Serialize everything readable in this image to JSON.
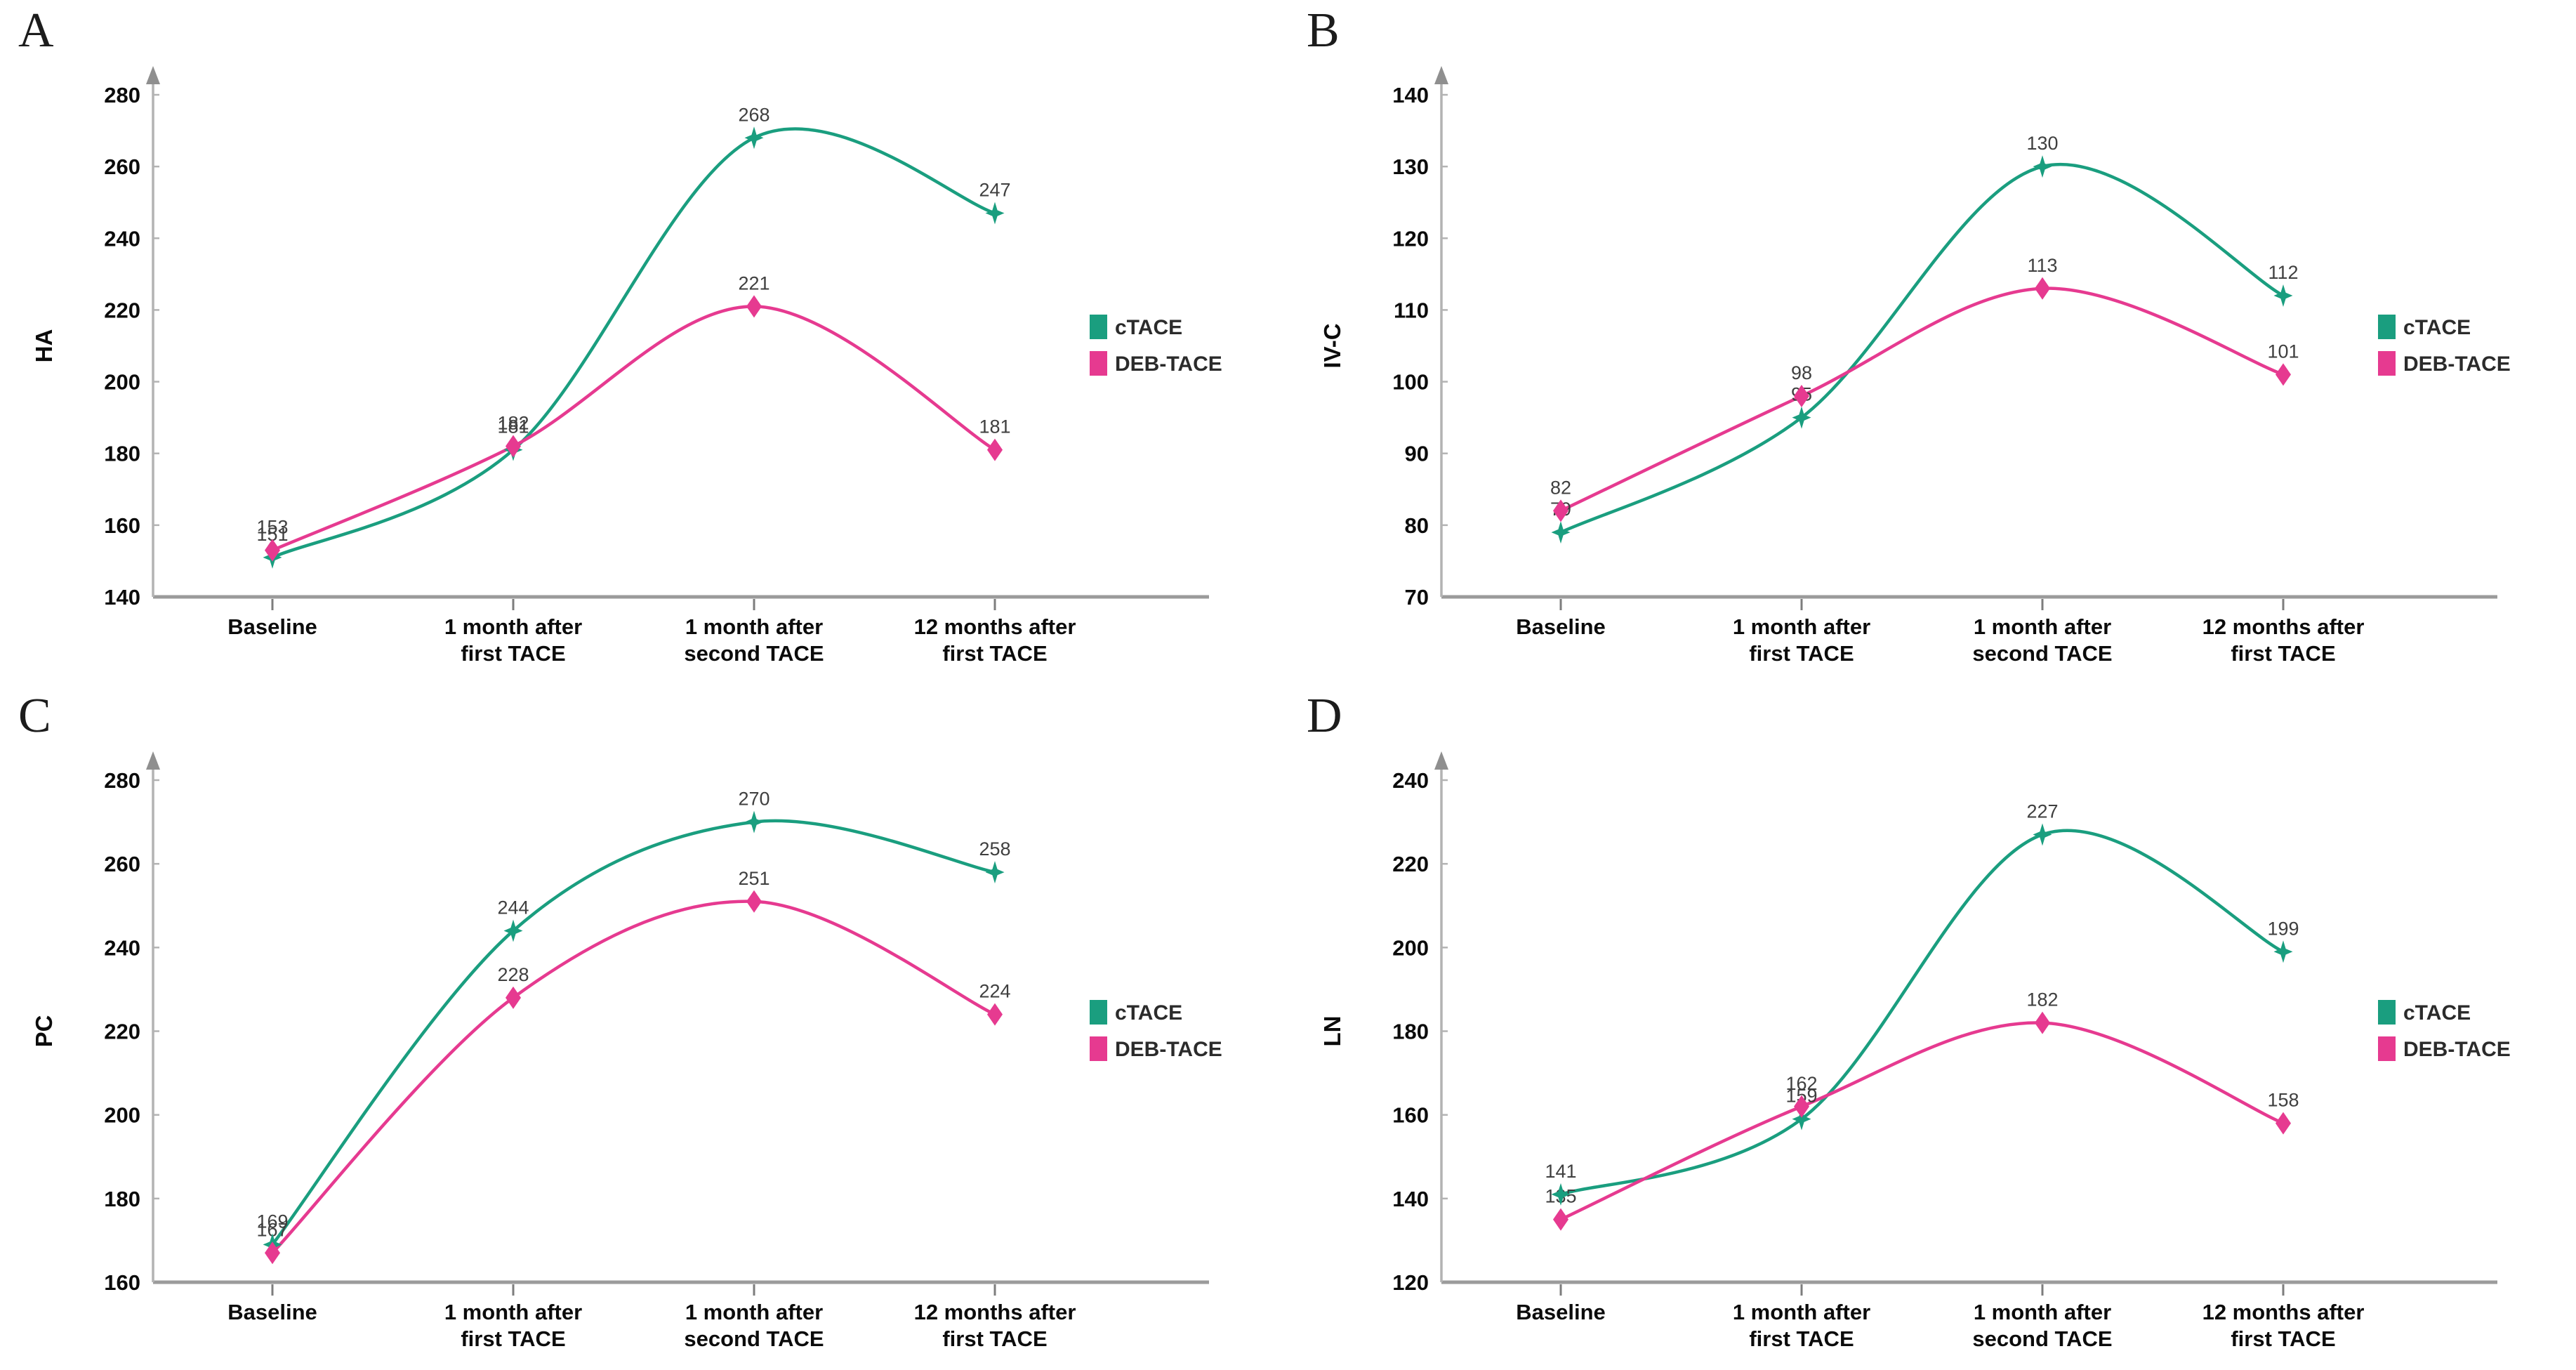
{
  "figure": {
    "background": "#ffffff",
    "panel_letters": [
      "A",
      "B",
      "C",
      "D"
    ]
  },
  "colors": {
    "ctace_green": "#1a9e7f",
    "deb_pink": "#e63a90",
    "x_axis_gray": "#9b9b9b",
    "y_axis_gray": "#b3b3b3",
    "arrow_gray": "#8f8f8f",
    "value_label_gray": "#3f3f3f",
    "tick_text_black": "#0b0b0b"
  },
  "chart_data": [
    {
      "panel_label": "A",
      "type": "line",
      "title": "",
      "xlabel": "",
      "ylabel": "HA",
      "ylim": [
        140,
        280
      ],
      "yticks": [
        140,
        160,
        180,
        200,
        220,
        240,
        260,
        280
      ],
      "grid": false,
      "legend_position": "right",
      "categories": [
        [
          "Baseline"
        ],
        [
          "1 month after",
          "first TACE"
        ],
        [
          "1 month after",
          "second TACE"
        ],
        [
          "12 months after",
          "first TACE"
        ]
      ],
      "series": [
        {
          "name": "cTACE",
          "color": "#1a9e7f",
          "marker": "star",
          "values": [
            151,
            181,
            268,
            247
          ]
        },
        {
          "name": "DEB-TACE",
          "color": "#e63a90",
          "marker": "diamond",
          "values": [
            153,
            182,
            221,
            181
          ]
        }
      ]
    },
    {
      "panel_label": "B",
      "type": "line",
      "title": "",
      "xlabel": "",
      "ylabel": "IV-C",
      "ylim": [
        70,
        140
      ],
      "yticks": [
        70,
        80,
        90,
        100,
        110,
        120,
        130,
        140
      ],
      "grid": false,
      "legend_position": "right",
      "categories": [
        [
          "Baseline"
        ],
        [
          "1 month after",
          "first TACE"
        ],
        [
          "1 month after",
          "second TACE"
        ],
        [
          "12 months after",
          "first TACE"
        ]
      ],
      "series": [
        {
          "name": "cTACE",
          "color": "#1a9e7f",
          "marker": "star",
          "values": [
            79,
            95,
            130,
            112
          ]
        },
        {
          "name": "DEB-TACE",
          "color": "#e63a90",
          "marker": "diamond",
          "values": [
            82,
            98,
            113,
            101
          ]
        }
      ]
    },
    {
      "panel_label": "C",
      "type": "line",
      "title": "",
      "xlabel": "",
      "ylabel": "PC",
      "ylim": [
        160,
        280
      ],
      "yticks": [
        160,
        180,
        200,
        220,
        240,
        260,
        280
      ],
      "grid": false,
      "legend_position": "right",
      "categories": [
        [
          "Baseline"
        ],
        [
          "1 month after",
          "first TACE"
        ],
        [
          "1 month after",
          "second TACE"
        ],
        [
          "12 months after",
          "first TACE"
        ]
      ],
      "series": [
        {
          "name": "cTACE",
          "color": "#1a9e7f",
          "marker": "star",
          "values": [
            169,
            244,
            270,
            258
          ]
        },
        {
          "name": "DEB-TACE",
          "color": "#e63a90",
          "marker": "diamond",
          "values": [
            167,
            228,
            251,
            224
          ]
        }
      ]
    },
    {
      "panel_label": "D",
      "type": "line",
      "title": "",
      "xlabel": "",
      "ylabel": "LN",
      "ylim": [
        120,
        240
      ],
      "yticks": [
        120,
        140,
        160,
        180,
        200,
        220,
        240
      ],
      "grid": false,
      "legend_position": "right",
      "categories": [
        [
          "Baseline"
        ],
        [
          "1 month after",
          "first TACE"
        ],
        [
          "1 month after",
          "second TACE"
        ],
        [
          "12 months after",
          "first TACE"
        ]
      ],
      "series": [
        {
          "name": "cTACE",
          "color": "#1a9e7f",
          "marker": "star",
          "values": [
            141,
            159,
            227,
            199
          ]
        },
        {
          "name": "DEB-TACE",
          "color": "#e63a90",
          "marker": "diamond",
          "values": [
            135,
            162,
            182,
            158
          ]
        }
      ]
    }
  ]
}
